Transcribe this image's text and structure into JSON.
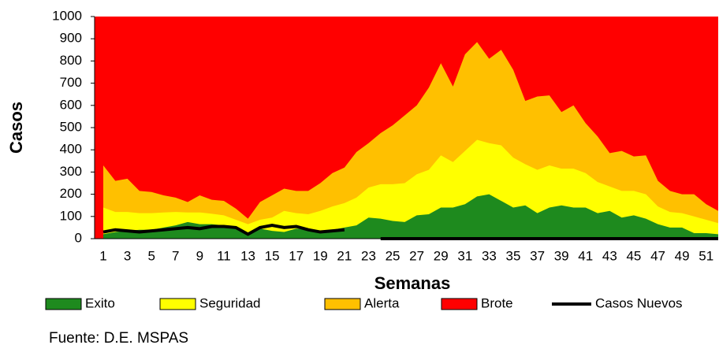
{
  "chart_data": {
    "type": "area",
    "y_label": "Casos",
    "x_label": "Semanas",
    "source": "Fuente: D.E. MSPAS",
    "categories": [
      1,
      null,
      3,
      null,
      5,
      null,
      7,
      null,
      9,
      null,
      11,
      null,
      13,
      null,
      15,
      null,
      17,
      null,
      19,
      null,
      21,
      null,
      23,
      null,
      25,
      null,
      27,
      null,
      29,
      null,
      31,
      null,
      33,
      null,
      35,
      null,
      37,
      null,
      39,
      null,
      41,
      null,
      43,
      null,
      45,
      null,
      47,
      null,
      49,
      null,
      51,
      null
    ],
    "ylim": [
      0,
      1000
    ],
    "yticks": [
      0,
      100,
      200,
      300,
      400,
      500,
      600,
      700,
      800,
      900,
      1000
    ],
    "legend": "bottom",
    "series": [
      {
        "name": "Exito",
        "color": "#1e8a1e",
        "values": [
          20,
          30,
          35,
          40,
          40,
          50,
          60,
          75,
          65,
          65,
          60,
          55,
          25,
          45,
          35,
          30,
          45,
          40,
          35,
          40,
          50,
          60,
          95,
          90,
          80,
          75,
          105,
          110,
          140,
          140,
          155,
          190,
          200,
          170,
          140,
          150,
          115,
          140,
          150,
          140,
          140,
          115,
          125,
          95,
          105,
          90,
          65,
          50,
          50,
          25,
          25,
          20
        ]
      },
      {
        "name": "Seguridad",
        "color": "#ffff00",
        "values": [
          140,
          120,
          120,
          115,
          115,
          118,
          120,
          118,
          118,
          112,
          105,
          85,
          65,
          85,
          95,
          125,
          115,
          110,
          125,
          145,
          160,
          185,
          230,
          245,
          245,
          250,
          290,
          310,
          375,
          345,
          395,
          445,
          430,
          420,
          365,
          335,
          310,
          330,
          315,
          315,
          295,
          255,
          235,
          215,
          215,
          200,
          145,
          120,
          115,
          100,
          85,
          70
        ]
      },
      {
        "name": "Alerta",
        "color": "#ffc000",
        "values": [
          330,
          260,
          270,
          215,
          210,
          195,
          185,
          165,
          195,
          175,
          170,
          135,
          90,
          165,
          195,
          225,
          215,
          215,
          250,
          295,
          320,
          390,
          430,
          475,
          510,
          555,
          600,
          680,
          790,
          685,
          830,
          885,
          810,
          850,
          760,
          620,
          640,
          645,
          570,
          600,
          520,
          460,
          385,
          395,
          370,
          375,
          260,
          215,
          200,
          200,
          155,
          125
        ]
      },
      {
        "name": "Brote",
        "color": "#ff0000",
        "values": [
          1000,
          1000,
          1000,
          1000,
          1000,
          1000,
          1000,
          1000,
          1000,
          1000,
          1000,
          1000,
          1000,
          1000,
          1000,
          1000,
          1000,
          1000,
          1000,
          1000,
          1000,
          1000,
          1000,
          1000,
          1000,
          1000,
          1000,
          1000,
          1000,
          1000,
          1000,
          1000,
          1000,
          1000,
          1000,
          1000,
          1000,
          1000,
          1000,
          1000,
          1000,
          1000,
          1000,
          1000,
          1000,
          1000,
          1000,
          1000,
          1000,
          1000,
          1000,
          1000
        ]
      },
      {
        "name": "Casos Nuevos",
        "color": "#000000",
        "kind": "line",
        "values": [
          30,
          40,
          35,
          30,
          35,
          40,
          45,
          50,
          45,
          55,
          55,
          50,
          20,
          50,
          60,
          50,
          55,
          40,
          30,
          35,
          40,
          null,
          null,
          0,
          0,
          0,
          0,
          0,
          0,
          0,
          0,
          0,
          0,
          0,
          0,
          0,
          0,
          0,
          0,
          0,
          0,
          0,
          0,
          0,
          0,
          0,
          0,
          0,
          0,
          0,
          0,
          0
        ]
      }
    ]
  }
}
